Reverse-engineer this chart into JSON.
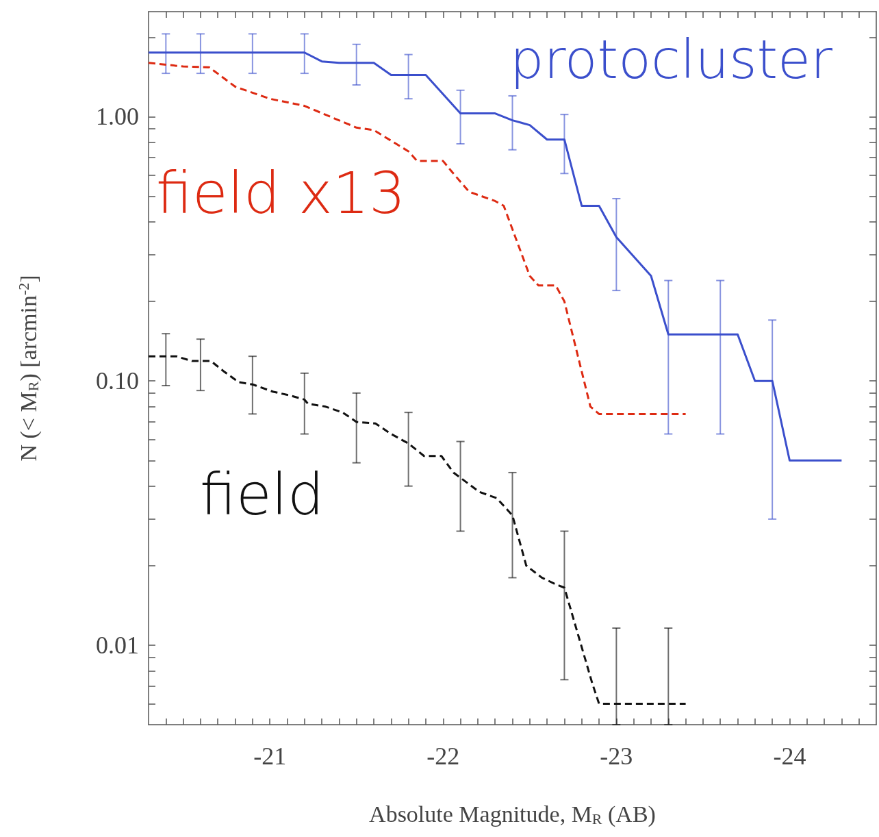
{
  "chart_data": {
    "type": "line",
    "xlabel": "Absolute Magnitude, M$_{R}$ (AB)",
    "ylabel": "N (< M$_{R}$) [arcmin$^{-2}$]",
    "log": "y",
    "marker": "none",
    "grid": false,
    "legend": false,
    "xlim": [
      -20.3,
      -24.5
    ],
    "ylim": [
      0.005,
      2.5
    ],
    "xticks": [
      -21,
      -22,
      -23,
      -24,
      {
        "value": -20.4,
        "label": null
      },
      {
        "value": -20.5,
        "label": null
      },
      {
        "value": -20.6,
        "label": null
      },
      {
        "value": -20.7,
        "label": null
      },
      {
        "value": -20.8,
        "label": null
      },
      {
        "value": -20.9,
        "label": null
      },
      {
        "value": -21.1,
        "label": null
      },
      {
        "value": -21.2,
        "label": null
      },
      {
        "value": -21.3,
        "label": null
      },
      {
        "value": -21.4,
        "label": null
      },
      {
        "value": -21.5,
        "label": null
      },
      {
        "value": -21.6,
        "label": null
      },
      {
        "value": -21.7,
        "label": null
      },
      {
        "value": -21.8,
        "label": null
      },
      {
        "value": -21.9,
        "label": null
      },
      {
        "value": -22.1,
        "label": null
      },
      {
        "value": -22.2,
        "label": null
      },
      {
        "value": -22.3,
        "label": null
      },
      {
        "value": -22.4,
        "label": null
      },
      {
        "value": -22.5,
        "label": null
      },
      {
        "value": -22.6,
        "label": null
      },
      {
        "value": -22.7,
        "label": null
      },
      {
        "value": -22.8,
        "label": null
      },
      {
        "value": -22.9,
        "label": null
      },
      {
        "value": -23.1,
        "label": null
      },
      {
        "value": -23.2,
        "label": null
      },
      {
        "value": -23.3,
        "label": null
      },
      {
        "value": -23.4,
        "label": null
      },
      {
        "value": -23.5,
        "label": null
      },
      {
        "value": -23.6,
        "label": null
      },
      {
        "value": -23.7,
        "label": null
      },
      {
        "value": -23.8,
        "label": null
      },
      {
        "value": -23.9,
        "label": null
      },
      {
        "value": -24.1,
        "label": null
      },
      {
        "value": -24.2,
        "label": null
      },
      {
        "value": -24.3,
        "label": null
      },
      {
        "value": -24.4,
        "label": null
      }
    ],
    "yticks": [
      0.01,
      {
        "value": 0.1,
        "label": "0.10"
      },
      {
        "value": 1,
        "label": "1.00"
      },
      {
        "value": 0.006,
        "label": null
      },
      {
        "value": 0.007,
        "label": null
      },
      {
        "value": 0.008,
        "label": null
      },
      {
        "value": 0.009,
        "label": null
      },
      {
        "value": 0.02,
        "label": null
      },
      {
        "value": 0.03,
        "label": null
      },
      {
        "value": 0.04,
        "label": null
      },
      {
        "value": 0.05,
        "label": null
      },
      {
        "value": 0.06,
        "label": null
      },
      {
        "value": 0.07,
        "label": null
      },
      {
        "value": 0.08,
        "label": null
      },
      {
        "value": 0.09,
        "label": null
      },
      {
        "value": 0.2,
        "label": null
      },
      {
        "value": 0.3,
        "label": null
      },
      {
        "value": 0.4,
        "label": null
      },
      {
        "value": 0.5,
        "label": null
      },
      {
        "value": 0.6,
        "label": null
      },
      {
        "value": 0.7,
        "label": null
      },
      {
        "value": 0.8,
        "label": null
      },
      {
        "value": 0.9,
        "label": null
      },
      {
        "value": 2,
        "label": null
      }
    ],
    "series": [
      {
        "name": "protocluster",
        "color": "#3b4fcc",
        "line_style": "solid",
        "x": [
          -20.3,
          -20.4,
          -20.6,
          -20.9,
          -21.2,
          -21.3,
          -21.4,
          -21.5,
          -21.6,
          -21.7,
          -21.8,
          -21.9,
          -22.1,
          -22.3,
          -22.4,
          -22.5,
          -22.6,
          -22.7,
          -22.8,
          -22.9,
          -23.0,
          -23.2,
          -23.3,
          -23.6,
          -23.7,
          -23.8,
          -23.9,
          -24.0,
          -24.3
        ],
        "values": [
          1.75,
          1.75,
          1.75,
          1.75,
          1.75,
          1.62,
          1.6,
          1.6,
          1.6,
          1.44,
          1.44,
          1.44,
          1.03,
          1.03,
          0.97,
          0.93,
          0.82,
          0.82,
          0.46,
          0.46,
          0.35,
          0.25,
          0.15,
          0.15,
          0.15,
          0.1,
          0.1,
          0.05,
          0.05
        ],
        "errors": [
          null,
          [
            1.46,
            2.06
          ],
          [
            1.46,
            2.06
          ],
          [
            1.46,
            2.06
          ],
          [
            1.46,
            2.06
          ],
          null,
          null,
          [
            1.32,
            1.88
          ],
          null,
          null,
          [
            1.17,
            1.72
          ],
          null,
          [
            0.79,
            1.26
          ],
          null,
          [
            0.75,
            1.2
          ],
          null,
          null,
          [
            0.61,
            1.02
          ],
          null,
          null,
          [
            0.22,
            0.49
          ],
          null,
          [
            0.063,
            0.24
          ],
          [
            0.063,
            0.24
          ],
          null,
          null,
          [
            0.03,
            0.17
          ],
          null,
          null
        ]
      },
      {
        "name": "field x13",
        "color": "#dd2a12",
        "line_style": "dashed",
        "x": [
          -20.3,
          -20.5,
          -20.65,
          -20.8,
          -21.0,
          -21.2,
          -21.35,
          -21.5,
          -21.6,
          -21.8,
          -21.85,
          -22.0,
          -22.05,
          -22.15,
          -22.3,
          -22.35,
          -22.5,
          -22.55,
          -22.65,
          -22.7,
          -22.85,
          -22.9,
          -23.4
        ],
        "values": [
          1.6,
          1.55,
          1.54,
          1.3,
          1.17,
          1.1,
          1.0,
          0.91,
          0.89,
          0.74,
          0.68,
          0.68,
          0.62,
          0.52,
          0.48,
          0.46,
          0.25,
          0.23,
          0.23,
          0.2,
          0.08,
          0.075,
          0.075
        ]
      },
      {
        "name": "field",
        "color": "#111111",
        "line_style": "dashed",
        "x": [
          -20.3,
          -20.4,
          -20.46,
          -20.55,
          -20.6,
          -20.66,
          -20.74,
          -20.82,
          -20.9,
          -20.92,
          -21.02,
          -21.12,
          -21.2,
          -21.22,
          -21.32,
          -21.42,
          -21.5,
          -21.61,
          -21.7,
          -21.8,
          -21.89,
          -21.99,
          -22.06,
          -22.1,
          -22.21,
          -22.31,
          -22.4,
          -22.48,
          -22.57,
          -22.65,
          -22.7,
          -22.86,
          -22.9,
          -23.0,
          -23.3,
          -23.4
        ],
        "values": [
          0.124,
          0.124,
          0.124,
          0.119,
          0.119,
          0.119,
          0.108,
          0.099,
          0.097,
          0.096,
          0.091,
          0.088,
          0.085,
          0.082,
          0.08,
          0.076,
          0.07,
          0.069,
          0.063,
          0.058,
          0.052,
          0.052,
          0.045,
          0.043,
          0.038,
          0.036,
          0.031,
          0.02,
          0.018,
          0.017,
          0.0165,
          0.0072,
          0.006,
          0.006,
          0.006,
          0.006
        ],
        "errors": [
          null,
          [
            0.096,
            0.151
          ],
          null,
          null,
          [
            0.092,
            0.144
          ],
          null,
          null,
          null,
          [
            0.075,
            0.124
          ],
          null,
          null,
          null,
          [
            0.063,
            0.107
          ],
          null,
          null,
          null,
          [
            0.049,
            0.09
          ],
          null,
          null,
          [
            0.04,
            0.076
          ],
          null,
          null,
          null,
          [
            0.027,
            0.059
          ],
          null,
          null,
          [
            0.018,
            0.045
          ],
          null,
          null,
          null,
          [
            0.0074,
            0.027
          ],
          null,
          null,
          [
            0.005,
            0.0116
          ],
          [
            0.005,
            0.0116
          ],
          null
        ]
      }
    ]
  }
}
